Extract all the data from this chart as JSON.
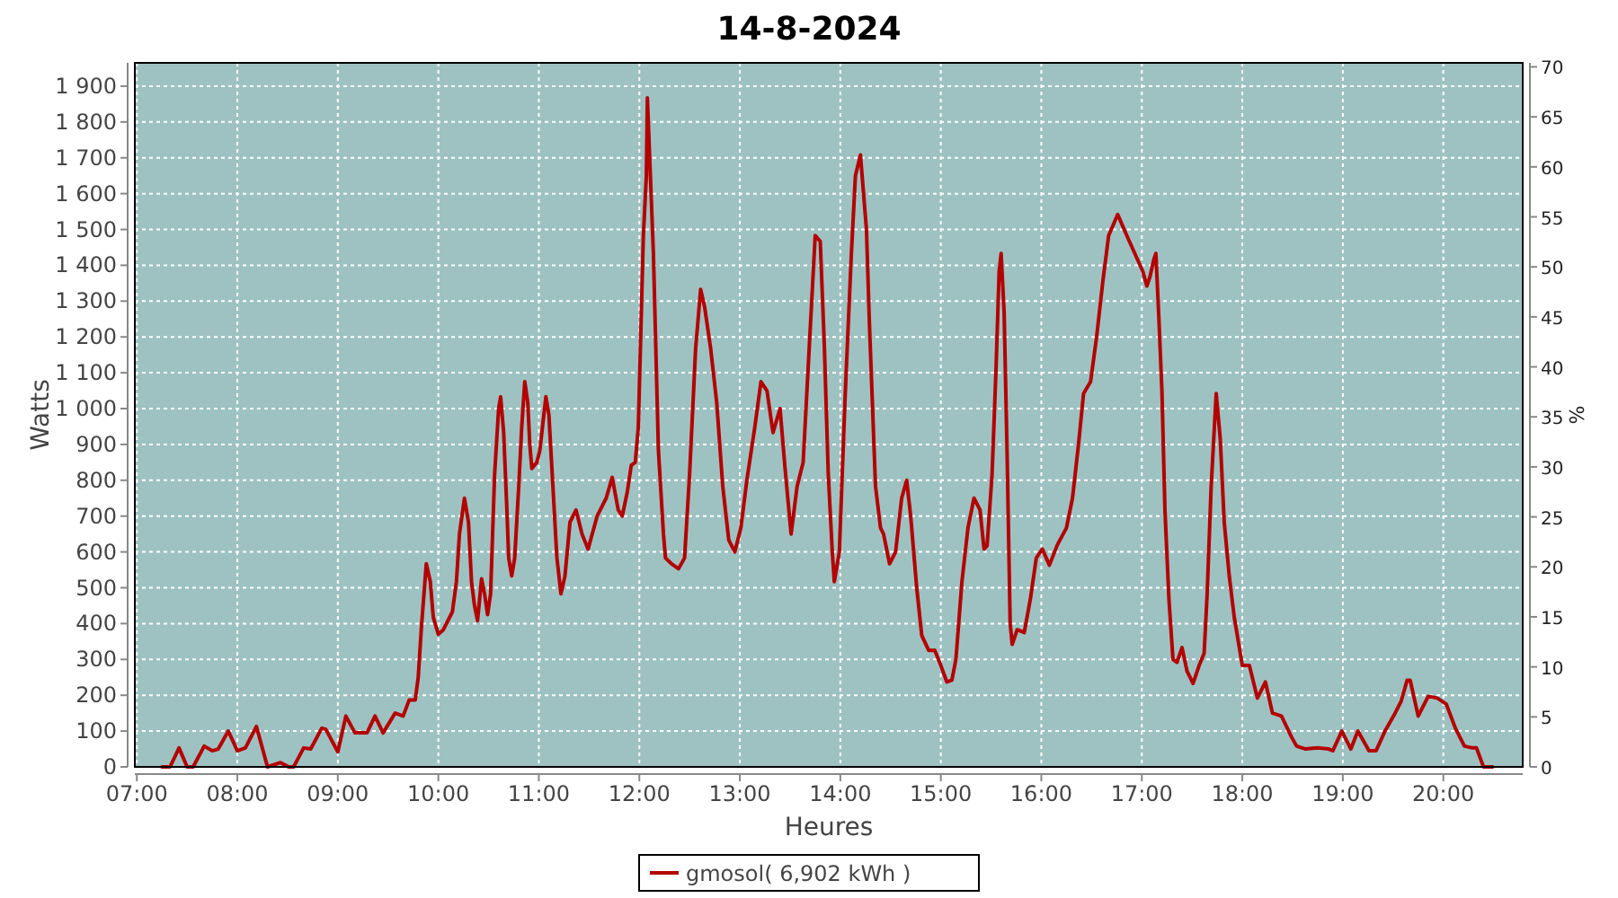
{
  "chart_data": {
    "type": "line",
    "title": "14-8-2024",
    "xlabel": "Heures",
    "ylabel": "Watts",
    "y2label": "%",
    "xlim": [
      6.98,
      20.79
    ],
    "xticks": [
      {
        "value": 7,
        "label": "07:00"
      },
      {
        "value": 8,
        "label": "08:00"
      },
      {
        "value": 9,
        "label": "09:00"
      },
      {
        "value": 10,
        "label": "10:00"
      },
      {
        "value": 11,
        "label": "11:00"
      },
      {
        "value": 12,
        "label": "12:00"
      },
      {
        "value": 13,
        "label": "13:00"
      },
      {
        "value": 14,
        "label": "14:00"
      },
      {
        "value": 15,
        "label": "15:00"
      },
      {
        "value": 16,
        "label": "16:00"
      },
      {
        "value": 17,
        "label": "17:00"
      },
      {
        "value": 18,
        "label": "18:00"
      },
      {
        "value": 19,
        "label": "19:00"
      },
      {
        "value": 20,
        "label": "20:00"
      }
    ],
    "ylim": [
      0,
      1965
    ],
    "yticks": [
      0,
      100,
      200,
      300,
      400,
      500,
      600,
      700,
      800,
      900,
      {
        "value": 1000,
        "label": "1 000"
      },
      {
        "value": 1100,
        "label": "1 100"
      },
      {
        "value": 1200,
        "label": "1 200"
      },
      {
        "value": 1300,
        "label": "1 300"
      },
      {
        "value": 1400,
        "label": "1 400"
      },
      {
        "value": 1500,
        "label": "1 500"
      },
      {
        "value": 1600,
        "label": "1 600"
      },
      {
        "value": 1700,
        "label": "1 700"
      },
      {
        "value": 1800,
        "label": "1 800"
      },
      {
        "value": 1900,
        "label": "1 900"
      }
    ],
    "y2lim": [
      0,
      70.4
    ],
    "y2ticks": [
      0,
      5,
      10,
      15,
      20,
      25,
      30,
      35,
      40,
      45,
      50,
      55,
      60,
      65,
      70
    ],
    "grid": true,
    "legend": "bottom",
    "line_style": "solid",
    "series": [
      {
        "name": "gmosol( 6,902 kWh )",
        "color": "#b40000",
        "x": [
          7.25,
          7.33,
          7.42,
          7.5,
          7.56,
          7.67,
          7.75,
          7.81,
          7.91,
          8.0,
          8.08,
          8.19,
          8.3,
          8.43,
          8.51,
          8.56,
          8.66,
          8.73,
          8.84,
          8.88,
          9.0,
          9.08,
          9.17,
          9.29,
          9.37,
          9.45,
          9.57,
          9.65,
          9.71,
          9.77,
          9.8,
          9.83,
          9.88,
          9.92,
          9.95,
          10.0,
          10.05,
          10.14,
          10.18,
          10.21,
          10.26,
          10.3,
          10.33,
          10.36,
          10.39,
          10.43,
          10.46,
          10.49,
          10.52,
          10.56,
          10.6,
          10.62,
          10.65,
          10.68,
          10.7,
          10.73,
          10.76,
          10.8,
          10.83,
          10.86,
          10.89,
          10.91,
          10.93,
          10.98,
          11.01,
          11.07,
          11.1,
          11.13,
          11.18,
          11.22,
          11.26,
          11.31,
          11.37,
          11.43,
          11.49,
          11.58,
          11.67,
          11.73,
          11.79,
          11.83,
          11.88,
          11.92,
          11.96,
          11.99,
          12.02,
          12.04,
          12.07,
          12.08,
          12.11,
          12.14,
          12.19,
          12.24,
          12.26,
          12.32,
          12.39,
          12.45,
          12.5,
          12.56,
          12.61,
          12.65,
          12.71,
          12.77,
          12.83,
          12.89,
          12.95,
          13.01,
          13.07,
          13.15,
          13.21,
          13.27,
          13.33,
          13.4,
          13.45,
          13.51,
          13.57,
          13.63,
          13.69,
          13.75,
          13.8,
          13.84,
          13.88,
          13.92,
          13.94,
          13.99,
          14.05,
          14.11,
          14.15,
          14.2,
          14.26,
          14.29,
          14.35,
          14.4,
          14.43,
          14.49,
          14.55,
          14.61,
          14.66,
          14.7,
          14.76,
          14.81,
          14.88,
          14.94,
          15.0,
          15.06,
          15.11,
          15.15,
          15.21,
          15.27,
          15.33,
          15.39,
          15.43,
          15.46,
          15.51,
          15.55,
          15.58,
          15.6,
          15.63,
          15.66,
          15.69,
          15.71,
          15.76,
          15.83,
          15.89,
          15.95,
          16.01,
          16.08,
          16.16,
          16.25,
          16.31,
          16.37,
          16.42,
          16.49,
          16.55,
          16.61,
          16.67,
          16.76,
          16.85,
          16.93,
          17.01,
          17.05,
          17.08,
          17.12,
          17.14,
          17.17,
          17.2,
          17.23,
          17.27,
          17.31,
          17.35,
          17.4,
          17.45,
          17.51,
          17.57,
          17.62,
          17.65,
          17.69,
          17.74,
          17.78,
          17.82,
          17.87,
          17.92,
          18.0,
          18.07,
          18.15,
          18.23,
          18.3,
          18.39,
          18.49,
          18.54,
          18.63,
          18.75,
          18.86,
          18.9,
          18.99,
          19.08,
          19.15,
          19.26,
          19.33,
          19.42,
          19.52,
          19.58,
          19.64,
          19.67,
          19.75,
          19.85,
          19.94,
          20.03,
          20.12,
          20.21,
          20.29,
          20.33,
          20.4,
          20.49
        ],
        "values": [
          0,
          0,
          53,
          0,
          0,
          58,
          45,
          50,
          100,
          45,
          53,
          113,
          0,
          12,
          0,
          0,
          53,
          50,
          108,
          105,
          42,
          142,
          95,
          95,
          142,
          95,
          150,
          142,
          187,
          187,
          250,
          383,
          567,
          517,
          417,
          370,
          383,
          433,
          517,
          650,
          750,
          683,
          517,
          450,
          408,
          525,
          483,
          425,
          483,
          817,
          1000,
          1033,
          933,
          733,
          583,
          533,
          583,
          783,
          950,
          1075,
          1017,
          900,
          833,
          850,
          883,
          1033,
          983,
          833,
          583,
          483,
          533,
          683,
          717,
          650,
          608,
          700,
          750,
          808,
          717,
          700,
          767,
          842,
          850,
          950,
          1267,
          1483,
          1650,
          1867,
          1650,
          1433,
          883,
          650,
          583,
          567,
          553,
          583,
          817,
          1167,
          1333,
          1283,
          1167,
          1017,
          783,
          633,
          600,
          667,
          800,
          950,
          1075,
          1050,
          933,
          1000,
          833,
          650,
          783,
          850,
          1167,
          1483,
          1467,
          1183,
          817,
          600,
          517,
          600,
          1050,
          1433,
          1650,
          1708,
          1500,
          1233,
          783,
          667,
          650,
          567,
          600,
          750,
          800,
          700,
          500,
          367,
          325,
          325,
          283,
          237,
          242,
          300,
          517,
          667,
          750,
          717,
          608,
          617,
          817,
          1117,
          1383,
          1433,
          1267,
          867,
          400,
          342,
          383,
          375,
          467,
          583,
          608,
          563,
          620,
          667,
          750,
          900,
          1042,
          1075,
          1200,
          1350,
          1483,
          1542,
          1483,
          1433,
          1383,
          1342,
          1367,
          1417,
          1433,
          1250,
          1050,
          717,
          467,
          300,
          292,
          333,
          267,
          233,
          283,
          317,
          483,
          783,
          1042,
          917,
          683,
          533,
          417,
          283,
          283,
          192,
          237,
          150,
          142,
          83,
          58,
          50,
          53,
          50,
          45,
          100,
          50,
          100,
          45,
          45,
          100,
          150,
          183,
          242,
          242,
          142,
          197,
          192,
          175,
          108,
          58,
          53,
          53,
          0,
          0
        ]
      }
    ]
  }
}
